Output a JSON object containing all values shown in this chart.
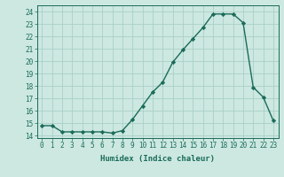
{
  "x": [
    0,
    1,
    2,
    3,
    4,
    5,
    6,
    7,
    8,
    9,
    10,
    11,
    12,
    13,
    14,
    15,
    16,
    17,
    18,
    19,
    20,
    21,
    22,
    23
  ],
  "y": [
    14.8,
    14.8,
    14.3,
    14.3,
    14.3,
    14.3,
    14.3,
    14.2,
    14.4,
    15.3,
    16.4,
    17.5,
    18.3,
    19.9,
    20.9,
    21.8,
    22.7,
    23.8,
    23.8,
    23.8,
    23.1,
    17.9,
    17.1,
    15.2
  ],
  "line_color": "#1a6b5a",
  "marker": "D",
  "marker_size": 2.2,
  "xlabel": "Humidex (Indice chaleur)",
  "xlim": [
    -0.5,
    23.5
  ],
  "ylim": [
    13.8,
    24.5
  ],
  "yticks": [
    14,
    15,
    16,
    17,
    18,
    19,
    20,
    21,
    22,
    23,
    24
  ],
  "xticks": [
    0,
    1,
    2,
    3,
    4,
    5,
    6,
    7,
    8,
    9,
    10,
    11,
    12,
    13,
    14,
    15,
    16,
    17,
    18,
    19,
    20,
    21,
    22,
    23
  ],
  "bg_color": "#cce8e0",
  "grid_color": "#aad0c8",
  "line_width": 1.0,
  "tick_color": "#1a6b5a",
  "tick_fontsize": 5.5,
  "xlabel_fontsize": 6.5
}
